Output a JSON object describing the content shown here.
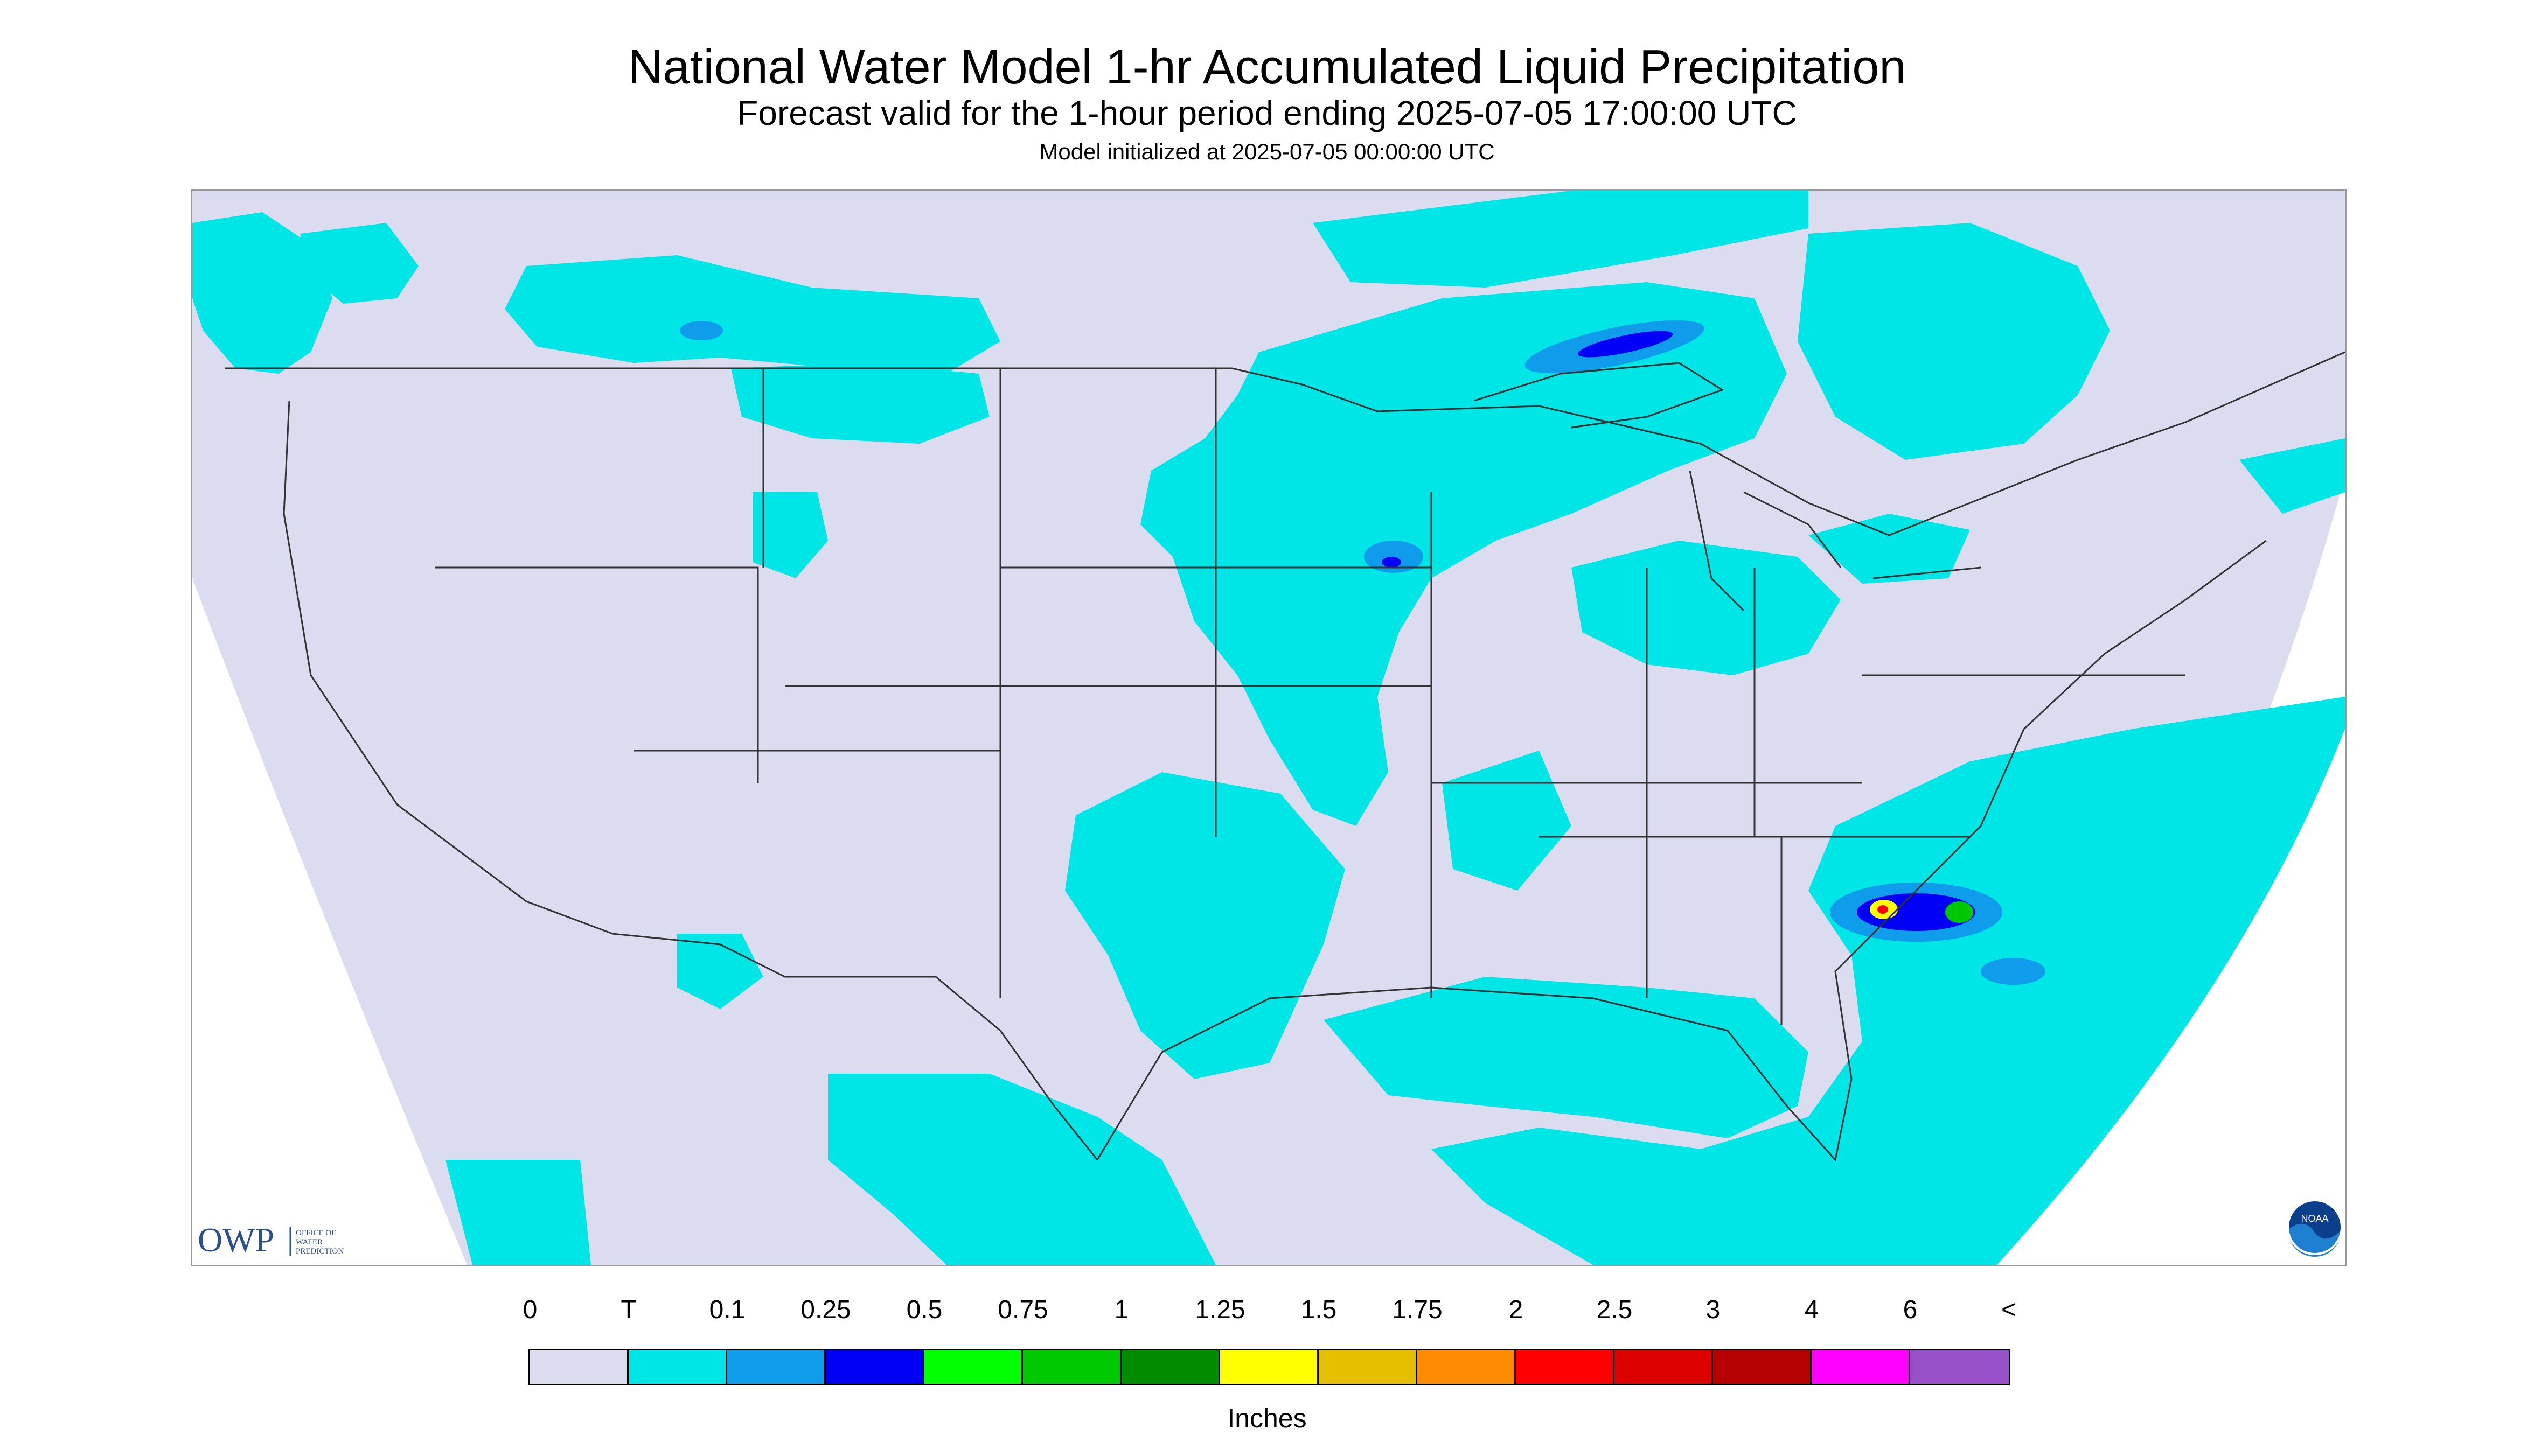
{
  "header": {
    "title": "National Water Model 1-hr Accumulated Liquid Precipitation",
    "subtitle": "Forecast valid for the 1-hour period ending 2025-07-05 17:00:00 UTC",
    "init": "Model initialized at 2025-07-05 00:00:00 UTC"
  },
  "logos": {
    "owp_main": "OWP",
    "owp_sub": "OFFICE OF WATER PREDICTION",
    "noaa": "NOAA"
  },
  "legend": {
    "units": "Inches",
    "labels": [
      "0",
      "T",
      "0.1",
      "0.25",
      "0.5",
      "0.75",
      "1",
      "1.25",
      "1.5",
      "1.75",
      "2",
      "2.5",
      "3",
      "4",
      "6",
      "<"
    ],
    "colors": [
      "#dcdcf0",
      "#00e5e5",
      "#0f9cea",
      "#0000f5",
      "#00ff00",
      "#00c800",
      "#008c00",
      "#ffff00",
      "#e6be00",
      "#ff8c00",
      "#ff0000",
      "#dc0000",
      "#b40000",
      "#ff00ff",
      "#9650c8"
    ]
  },
  "map": {
    "background": "#ffffff",
    "domain_fill": "#dcdcf0",
    "precip_light": "#00e5e5",
    "precip_mid": "#0f9cea",
    "precip_heavy": "#0000f5",
    "boundary_color": "#333333"
  }
}
